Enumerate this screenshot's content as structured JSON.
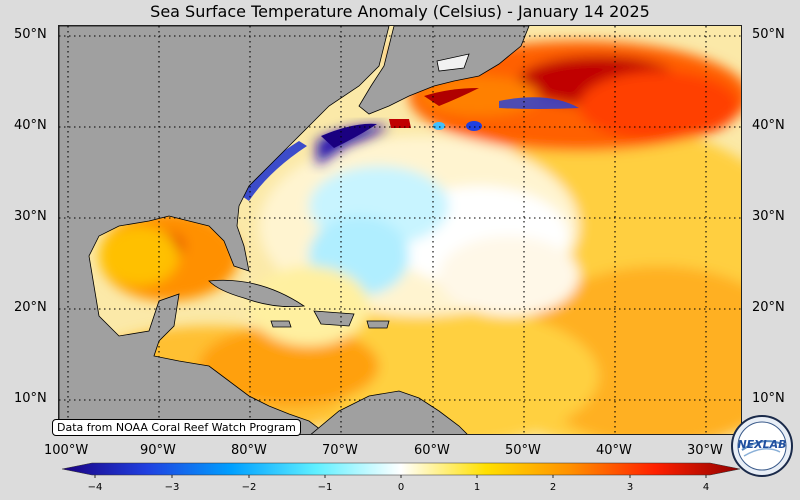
{
  "title": "Sea Surface Temperature Anomaly (Celsius) - January 14 2025",
  "credit": "Data from NOAA Coral Reef Watch Program",
  "latitudes": [
    "50°N",
    "40°N",
    "30°N",
    "20°N",
    "10°N"
  ],
  "longitudes": [
    "100°W",
    "90°W",
    "80°W",
    "70°W",
    "60°W",
    "50°W",
    "40°W",
    "30°W"
  ],
  "colorbar": {
    "ticks": [
      "−4",
      "−3",
      "−2",
      "−1",
      "0",
      "1",
      "2",
      "3",
      "4"
    ],
    "min": -4,
    "max": 4,
    "colors": [
      "#1a0080",
      "#2040e0",
      "#00a0ff",
      "#60f0ff",
      "#ffffff",
      "#ffe000",
      "#ff9000",
      "#ff2000",
      "#900000"
    ]
  },
  "logo": {
    "text": "NEXLAB"
  },
  "colors": {
    "land": "#a0a0a0",
    "background": "#dcdcdc"
  }
}
